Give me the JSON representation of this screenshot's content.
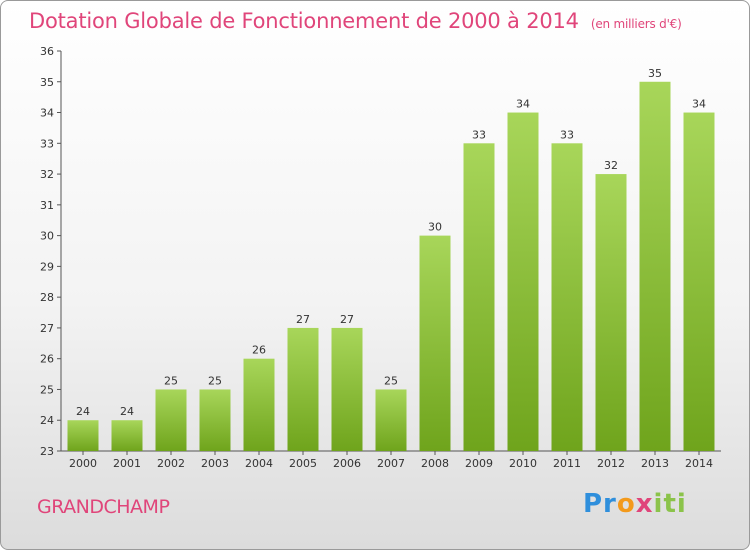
{
  "header": {
    "title": "Dotation Globale de Fonctionnement de 2000 à 2014",
    "subtitle": "(en milliers d'€)"
  },
  "location": "GRANDCHAMP",
  "logo": {
    "parts": [
      "Pr",
      "o",
      "x",
      "iti"
    ],
    "colors": [
      "#2f8fdc",
      "#f39a1c",
      "#e0457a",
      "#8bc34a"
    ]
  },
  "colors": {
    "accent": "#e0457a",
    "bar_light": "#a8d65a",
    "bar_dark": "#6fa41c"
  },
  "chart_data": {
    "type": "bar",
    "categories": [
      "2000",
      "2001",
      "2002",
      "2003",
      "2004",
      "2005",
      "2006",
      "2007",
      "2008",
      "2009",
      "2010",
      "2011",
      "2012",
      "2013",
      "2014"
    ],
    "values": [
      24,
      24,
      25,
      25,
      26,
      27,
      27,
      25,
      30,
      33,
      34,
      33,
      32,
      35,
      34
    ],
    "data_labels": [
      "24",
      "24",
      "25",
      "25",
      "26",
      "27",
      "27",
      "25",
      "30",
      "33",
      "34",
      "33",
      "32",
      "35",
      "34"
    ],
    "yticks": [
      23,
      24,
      25,
      26,
      27,
      28,
      29,
      30,
      31,
      32,
      33,
      34,
      35,
      36
    ],
    "ylim": [
      23,
      36
    ],
    "grid": false,
    "legend": "none"
  }
}
